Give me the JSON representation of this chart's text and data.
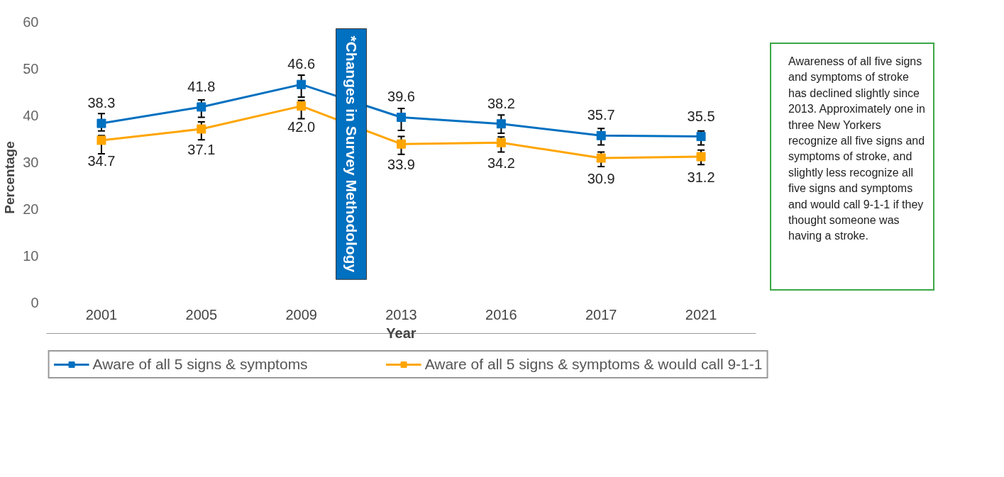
{
  "chart_data": {
    "type": "line",
    "xlabel": "Year",
    "ylabel": "Percentage",
    "categories": [
      "2001",
      "2005",
      "2009",
      "2013",
      "2016",
      "2017",
      "2021"
    ],
    "series": [
      {
        "name": "Aware of all 5 signs & symptoms",
        "color": "#0070c0",
        "values": [
          38.3,
          41.8,
          46.6,
          39.6,
          38.2,
          35.7,
          35.5
        ],
        "value_labels": [
          "38.3",
          "41.8",
          "46.6",
          "39.6",
          "38.2",
          "35.7",
          "35.5"
        ],
        "errors": [
          [
            36.7,
            40.4
          ],
          [
            39.6,
            43.3
          ],
          [
            43.9,
            48.6
          ],
          [
            36.8,
            41.5
          ],
          [
            36.2,
            40.1
          ],
          [
            33.7,
            37.2
          ],
          [
            33.7,
            36.7
          ]
        ]
      },
      {
        "name": "Aware of all 5 signs & symptoms & would call 9-1-1",
        "color": "#ffa500",
        "values": [
          34.7,
          37.1,
          42,
          33.9,
          34.2,
          30.9,
          31.2
        ],
        "value_labels": [
          "34.7",
          "37.1",
          "42.0",
          "33.9",
          "34.2",
          "30.9",
          "31.2"
        ],
        "errors": [
          [
            31.8,
            35.7
          ],
          [
            34.8,
            38.6
          ],
          [
            39.3,
            43.2
          ],
          [
            31.7,
            35.5
          ],
          [
            32.2,
            35.4
          ],
          [
            29.1,
            32.2
          ],
          [
            29.5,
            32.6
          ]
        ]
      }
    ],
    "ylim": [
      -6.5,
      60
    ],
    "yticks": [
      0,
      10,
      20,
      30,
      40,
      50,
      60
    ],
    "grid": false,
    "legend": "bottom",
    "marker": "square",
    "line_style": "solid",
    "annotations": [
      "*Changes in Survey Methodology",
      "Awareness of all five signs and symptoms of stroke has declined slightly since 2013. Approximately one in three New Yorkers recognize all five signs and symptoms of stroke, and slightly less recognize all five signs and symptoms and would call 9-1-1 if they thought someone was having a stroke."
    ]
  }
}
